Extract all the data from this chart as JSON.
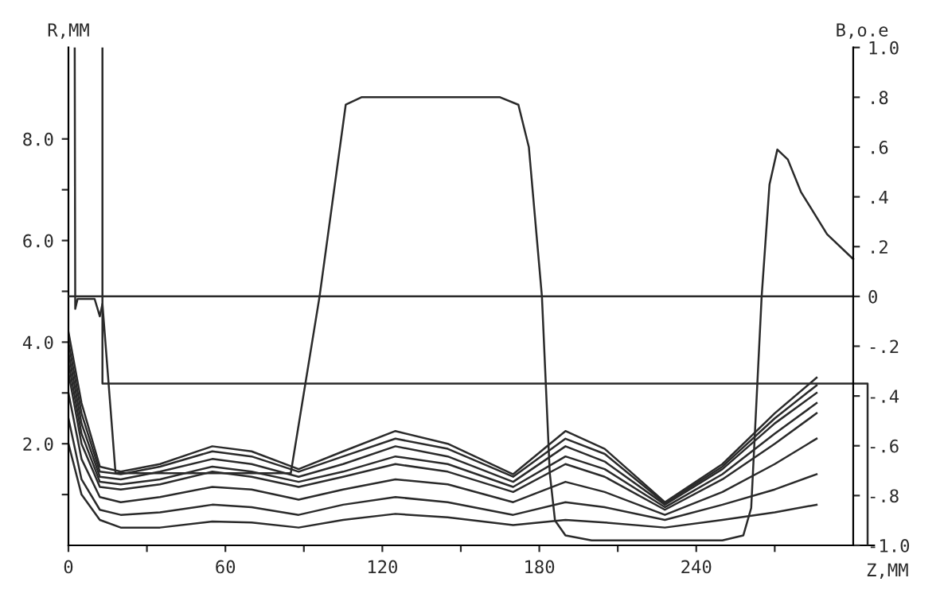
{
  "chart_data": {
    "type": "line",
    "xlabel": "Z,MM",
    "ylabel": "R,MM",
    "y2label": "B,o.e",
    "xlim": [
      0,
      308
    ],
    "ylim": [
      0,
      9.8
    ],
    "y2lim": [
      -1.0,
      1.0
    ],
    "xticks": [
      0,
      {
        "value": 30,
        "label": null
      },
      60,
      {
        "value": 90,
        "label": null
      },
      120,
      {
        "value": 150,
        "label": null
      },
      180,
      {
        "value": 210,
        "label": null
      },
      240,
      {
        "value": 270,
        "label": null
      }
    ],
    "yticks": [
      {
        "value": 1,
        "label": null
      },
      {
        "value": 2,
        "label": "2.0"
      },
      {
        "value": 3,
        "label": null
      },
      {
        "value": 4,
        "label": "4.0"
      },
      {
        "value": 5,
        "label": null
      },
      {
        "value": 6,
        "label": "6.0"
      },
      {
        "value": 7,
        "label": null
      },
      {
        "value": 8,
        "label": "8.0"
      }
    ],
    "y2ticks": [
      {
        "value": 1.0,
        "label": "1.0"
      },
      {
        "value": 0.8,
        "label": ".8"
      },
      {
        "value": 0.6,
        "label": ".6"
      },
      {
        "value": 0.4,
        "label": ".4"
      },
      {
        "value": 0.2,
        "label": ".2"
      },
      {
        "value": 0,
        "label": "0"
      },
      {
        "value": -0.2,
        "label": "-.2"
      },
      {
        "value": -0.4,
        "label": "-.4"
      },
      {
        "value": -0.6,
        "label": "-.6"
      },
      {
        "value": -0.8,
        "label": "-.8"
      },
      {
        "value": -1.0,
        "label": "-1.0"
      }
    ],
    "x": [
      0,
      5,
      12,
      20,
      35,
      55,
      70,
      88,
      105,
      125,
      145,
      170,
      190,
      205,
      228,
      250,
      270,
      286
    ],
    "series": [
      {
        "color": "#2a2a2a",
        "values": [
          4.2,
          2.8,
          1.55,
          1.45,
          1.6,
          1.95,
          1.85,
          1.5,
          1.85,
          2.25,
          2.0,
          1.4,
          2.25,
          1.9,
          0.85,
          1.6,
          2.6,
          3.3
        ]
      },
      {
        "color": "#2a2a2a",
        "values": [
          4.0,
          2.6,
          1.45,
          1.4,
          1.55,
          1.85,
          1.75,
          1.45,
          1.75,
          2.1,
          1.9,
          1.35,
          2.1,
          1.8,
          0.83,
          1.55,
          2.5,
          3.15
        ]
      },
      {
        "color": "#2a2a2a",
        "values": [
          3.8,
          2.4,
          1.35,
          1.3,
          1.45,
          1.7,
          1.6,
          1.35,
          1.6,
          1.95,
          1.75,
          1.25,
          1.95,
          1.65,
          0.8,
          1.5,
          2.4,
          3.0
        ]
      },
      {
        "color": "#2a2a2a",
        "values": [
          3.6,
          2.2,
          1.25,
          1.2,
          1.3,
          1.55,
          1.45,
          1.25,
          1.45,
          1.75,
          1.6,
          1.15,
          1.75,
          1.5,
          0.75,
          1.4,
          2.2,
          2.8
        ]
      },
      {
        "color": "#2a2a2a",
        "values": [
          3.4,
          2.0,
          1.15,
          1.1,
          1.2,
          1.45,
          1.35,
          1.15,
          1.35,
          1.6,
          1.45,
          1.05,
          1.6,
          1.35,
          0.7,
          1.3,
          2.0,
          2.6
        ]
      },
      {
        "color": "#2a2a2a",
        "values": [
          3.0,
          1.7,
          0.95,
          0.85,
          0.95,
          1.15,
          1.1,
          0.9,
          1.1,
          1.3,
          1.2,
          0.85,
          1.25,
          1.05,
          0.6,
          1.05,
          1.6,
          2.1
        ]
      },
      {
        "color": "#2a2a2a",
        "values": [
          2.5,
          1.3,
          0.7,
          0.6,
          0.65,
          0.8,
          0.75,
          0.6,
          0.8,
          0.95,
          0.85,
          0.6,
          0.85,
          0.75,
          0.5,
          0.8,
          1.1,
          1.4
        ]
      },
      {
        "color": "#2a2a2a",
        "values": [
          2.0,
          1.0,
          0.5,
          0.35,
          0.35,
          0.47,
          0.45,
          0.35,
          0.5,
          0.62,
          0.55,
          0.4,
          0.5,
          0.45,
          0.35,
          0.5,
          0.65,
          0.8
        ]
      },
      {
        "color": "#2a2a2a",
        "axis": "y2",
        "x": [
          2.4,
          2.6,
          3.5,
          10,
          12,
          13,
          18,
          85,
          96,
          106,
          112,
          165,
          172,
          176,
          181,
          184,
          186,
          190,
          200,
          250,
          258,
          261,
          265,
          268,
          271,
          275,
          280,
          290,
          300
        ],
        "values": [
          1.0,
          -0.05,
          -0.01,
          -0.01,
          -0.08,
          -0.03,
          -0.71,
          -0.71,
          0,
          0.77,
          0.8,
          0.8,
          0.77,
          0.6,
          0,
          -0.71,
          -0.9,
          -0.96,
          -0.98,
          -0.98,
          -0.96,
          -0.85,
          0,
          0.45,
          0.59,
          0.55,
          0.42,
          0.25,
          0.15
        ]
      },
      {
        "color": "#2a2a2a",
        "axis": "y2",
        "x": [
          13,
          13,
          305.5,
          305.5
        ],
        "values": [
          1.0,
          -0.35,
          -0.35,
          -1.0
        ]
      }
    ],
    "ref_lines": [
      {
        "axis": "y2",
        "value": 0,
        "color": "#2a2a2a"
      }
    ],
    "line_style": "solid",
    "marker": "none",
    "grid": false,
    "legend": false
  }
}
